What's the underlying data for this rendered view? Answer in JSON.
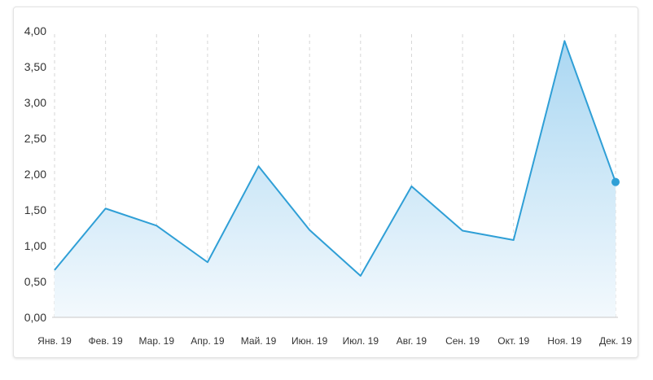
{
  "colors": {
    "line": "#2f9fd6",
    "area_top": "#aad7f2",
    "area_bottom": "#f3f9fd",
    "grid": "#d6d6d6",
    "axis": "#c8c8c8",
    "marker": "#2f9fd6"
  },
  "chart_data": {
    "type": "area",
    "grid": true,
    "ylim": [
      0,
      4
    ],
    "yticks": [
      "0,00",
      "0,50",
      "1,00",
      "1,50",
      "2,00",
      "2,50",
      "3,00",
      "3,50",
      "4,00"
    ],
    "categories": [
      "Янв. 19",
      "Фев. 19",
      "Мар. 19",
      "Апр. 19",
      "Май. 19",
      "Июн. 19",
      "Июл. 19",
      "Авг. 19",
      "Сен. 19",
      "Окт. 19",
      "Ноя. 19",
      "Дек. 19"
    ],
    "series": [
      {
        "values": [
          0.66,
          1.52,
          1.28,
          0.77,
          2.11,
          1.22,
          0.58,
          1.83,
          1.21,
          1.08,
          3.86,
          1.89
        ]
      }
    ],
    "highlight_last_point": true
  }
}
